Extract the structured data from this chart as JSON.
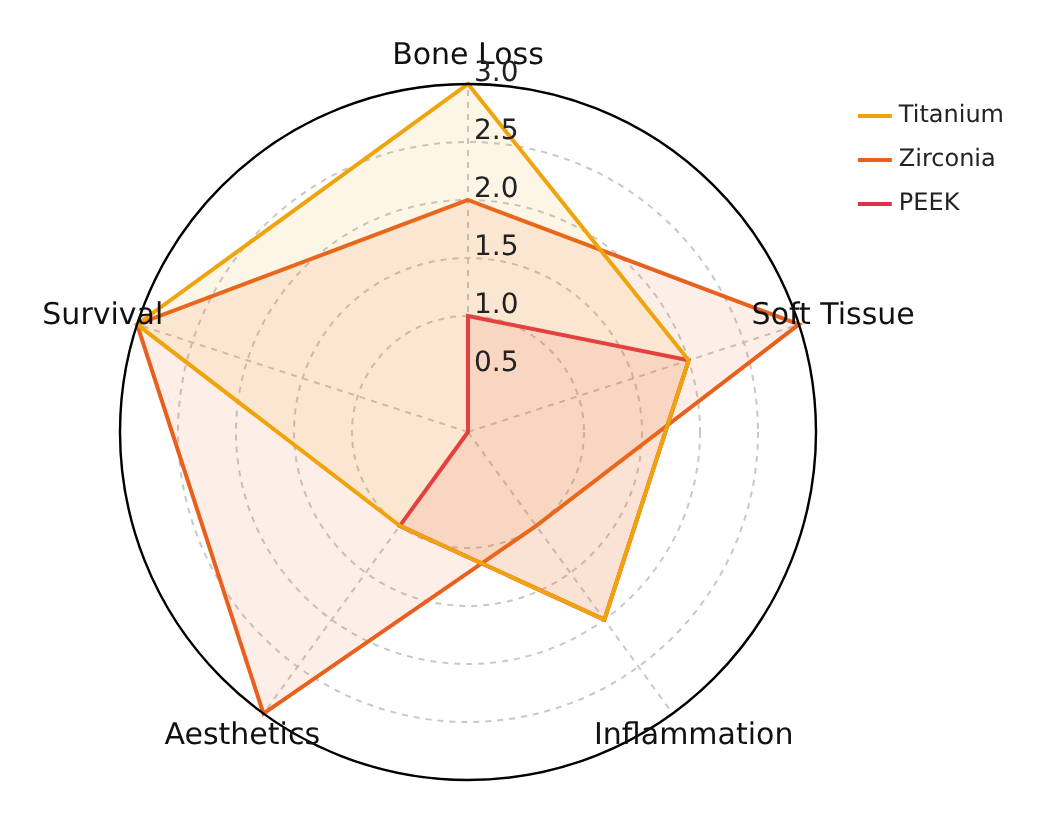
{
  "chart_data": {
    "type": "radar",
    "categories": [
      "Bone Loss",
      "Soft Tissue",
      "Inflammation",
      "Aesthetics",
      "Survival"
    ],
    "series": [
      {
        "name": "Titanium",
        "color": "#f0a30a",
        "values": [
          3.0,
          2.0,
          2.0,
          1.0,
          3.0
        ]
      },
      {
        "name": "Zirconia",
        "color": "#e8601c",
        "values": [
          2.0,
          3.0,
          1.0,
          3.0,
          3.0
        ]
      },
      {
        "name": "PEEK",
        "color": "#e3304a",
        "values": [
          1.0,
          2.0,
          2.0,
          1.0,
          0.0
        ]
      }
    ],
    "ylim": [
      0,
      3
    ],
    "yticks": [
      0.5,
      {
        "value": 1,
        "label": "1.0"
      },
      1.5,
      {
        "value": 2,
        "label": "2.0"
      },
      2.5,
      {
        "value": 3,
        "label": "3.0"
      }
    ],
    "grid": true,
    "legend": "top right",
    "marker": "none",
    "line_style": "solid"
  }
}
